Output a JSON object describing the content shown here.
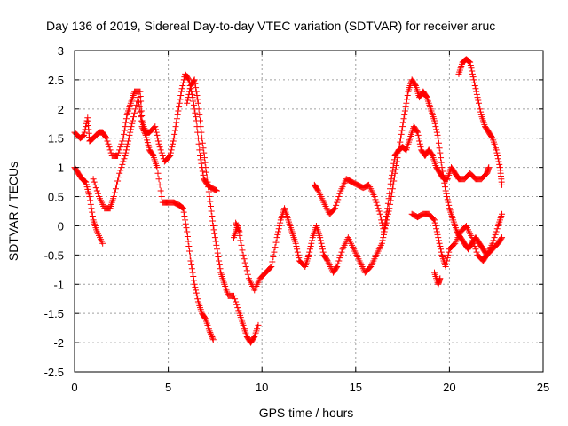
{
  "chart_data": {
    "type": "scatter",
    "title": "Day 136 of 2019, Sidereal Day-to-day VTEC variation (SDTVAR) for receiver aruc",
    "xlabel": "GPS time / hours",
    "ylabel": "SDTVAR / TECUs",
    "xlim": [
      0,
      25
    ],
    "ylim": [
      -2.5,
      3
    ],
    "xticks": [
      "0",
      "5",
      "10",
      "15",
      "20",
      "25"
    ],
    "xtick_values": [
      0,
      5,
      10,
      15,
      20,
      25
    ],
    "yticks": [
      "3",
      "2.5",
      "2",
      "1.5",
      "1",
      "0.5",
      "0",
      "-0.5",
      "-1",
      "-1.5",
      "-2",
      "-2.5"
    ],
    "ytick_values": [
      3,
      2.5,
      2,
      1.5,
      1,
      0.5,
      0,
      -0.5,
      -1,
      -1.5,
      -2,
      -2.5
    ],
    "grid": true,
    "marker": "plus",
    "color": "#ff0000",
    "series": [
      {
        "values": [
          [
            0.0,
            1.6
          ],
          [
            0.3,
            1.5
          ],
          [
            0.5,
            1.55
          ],
          [
            0.7,
            1.85
          ],
          [
            0.8,
            1.45
          ],
          [
            1.0,
            1.5
          ],
          [
            1.3,
            1.6
          ],
          [
            1.5,
            1.6
          ],
          [
            1.7,
            1.5
          ],
          [
            2.0,
            1.2
          ],
          [
            2.3,
            1.2
          ],
          [
            2.6,
            1.5
          ],
          [
            2.8,
            1.9
          ],
          [
            3.0,
            2.1
          ],
          [
            3.2,
            2.3
          ],
          [
            3.5,
            2.3
          ],
          [
            3.6,
            1.8
          ],
          [
            3.8,
            1.6
          ],
          [
            4.0,
            1.6
          ],
          [
            4.3,
            1.7
          ],
          [
            4.5,
            1.4
          ],
          [
            4.8,
            1.1
          ],
          [
            5.1,
            1.2
          ],
          [
            5.3,
            1.5
          ],
          [
            5.5,
            1.9
          ],
          [
            5.7,
            2.3
          ],
          [
            5.9,
            2.6
          ],
          [
            6.1,
            2.5
          ],
          [
            6.3,
            2.2
          ],
          [
            6.5,
            1.8
          ],
          [
            6.7,
            1.2
          ],
          [
            6.9,
            0.8
          ],
          [
            7.1,
            0.7
          ],
          [
            7.3,
            0.65
          ],
          [
            7.6,
            0.6
          ]
        ]
      },
      {
        "values": [
          [
            0.0,
            1.0
          ],
          [
            0.2,
            0.9
          ],
          [
            0.4,
            0.8
          ],
          [
            0.6,
            0.75
          ],
          [
            0.8,
            0.5
          ],
          [
            1.0,
            0.1
          ],
          [
            1.2,
            -0.1
          ],
          [
            1.5,
            -0.3
          ]
        ]
      },
      {
        "values": [
          [
            1.0,
            0.8
          ],
          [
            1.3,
            0.5
          ],
          [
            1.6,
            0.3
          ],
          [
            1.9,
            0.3
          ],
          [
            2.1,
            0.5
          ],
          [
            2.4,
            0.9
          ],
          [
            2.7,
            1.2
          ],
          [
            2.9,
            1.5
          ],
          [
            3.1,
            1.8
          ],
          [
            3.4,
            2.2
          ],
          [
            3.6,
            1.7
          ],
          [
            3.8,
            1.55
          ],
          [
            4.0,
            1.3
          ],
          [
            4.2,
            1.2
          ],
          [
            4.4,
            1.0
          ],
          [
            4.7,
            0.4
          ],
          [
            5.0,
            0.4
          ],
          [
            5.3,
            0.4
          ],
          [
            5.6,
            0.35
          ],
          [
            5.8,
            0.3
          ],
          [
            6.0,
            -0.1
          ],
          [
            6.2,
            -0.6
          ],
          [
            6.4,
            -1.0
          ],
          [
            6.6,
            -1.3
          ],
          [
            6.8,
            -1.5
          ],
          [
            7.0,
            -1.6
          ],
          [
            7.2,
            -1.8
          ],
          [
            7.4,
            -1.95
          ]
        ]
      },
      {
        "values": [
          [
            6.0,
            2.1
          ],
          [
            6.2,
            2.4
          ],
          [
            6.4,
            2.5
          ],
          [
            6.6,
            2.1
          ],
          [
            6.8,
            1.5
          ],
          [
            7.0,
            1.0
          ],
          [
            7.2,
            0.5
          ],
          [
            7.4,
            0.0
          ],
          [
            7.6,
            -0.4
          ],
          [
            7.8,
            -0.8
          ],
          [
            8.0,
            -1.0
          ],
          [
            8.2,
            -1.2
          ],
          [
            8.5,
            -1.2
          ],
          [
            8.8,
            -1.5
          ],
          [
            9.0,
            -1.7
          ],
          [
            9.2,
            -1.9
          ],
          [
            9.4,
            -2.0
          ],
          [
            9.6,
            -1.9
          ],
          [
            9.8,
            -1.7
          ]
        ]
      },
      {
        "values": [
          [
            8.5,
            -0.2
          ],
          [
            8.7,
            0.0
          ],
          [
            9.0,
            -0.5
          ],
          [
            9.3,
            -0.9
          ],
          [
            9.6,
            -1.1
          ],
          [
            9.9,
            -0.9
          ],
          [
            10.2,
            -0.8
          ],
          [
            10.5,
            -0.7
          ],
          [
            10.8,
            -0.2
          ],
          [
            11.0,
            0.1
          ],
          [
            11.2,
            0.3
          ],
          [
            11.4,
            0.1
          ],
          [
            11.6,
            -0.1
          ],
          [
            11.8,
            -0.3
          ],
          [
            12.0,
            -0.6
          ],
          [
            12.3,
            -0.7
          ],
          [
            12.5,
            -0.5
          ],
          [
            12.7,
            -0.2
          ],
          [
            12.9,
            0.0
          ],
          [
            13.1,
            -0.2
          ],
          [
            13.3,
            -0.5
          ],
          [
            13.5,
            -0.6
          ],
          [
            13.8,
            -0.8
          ],
          [
            14.0,
            -0.7
          ],
          [
            14.3,
            -0.4
          ],
          [
            14.6,
            -0.2
          ],
          [
            14.9,
            -0.4
          ],
          [
            15.2,
            -0.6
          ],
          [
            15.5,
            -0.8
          ],
          [
            15.8,
            -0.7
          ],
          [
            16.1,
            -0.5
          ],
          [
            16.4,
            -0.3
          ],
          [
            16.6,
            0.0
          ],
          [
            16.8,
            0.3
          ],
          [
            17.0,
            0.7
          ],
          [
            17.2,
            1.1
          ],
          [
            17.4,
            1.5
          ],
          [
            17.6,
            1.9
          ],
          [
            17.8,
            2.3
          ],
          [
            18.0,
            2.5
          ],
          [
            18.2,
            2.4
          ],
          [
            18.4,
            2.2
          ],
          [
            18.6,
            2.3
          ],
          [
            18.8,
            2.2
          ],
          [
            19.0,
            2.0
          ],
          [
            19.2,
            1.8
          ],
          [
            19.4,
            1.5
          ],
          [
            19.6,
            1.0
          ],
          [
            19.8,
            0.6
          ],
          [
            20.0,
            0.3
          ],
          [
            20.2,
            0.1
          ],
          [
            20.4,
            -0.1
          ],
          [
            20.6,
            -0.2
          ],
          [
            20.8,
            -0.3
          ],
          [
            21.0,
            -0.4
          ],
          [
            21.2,
            -0.3
          ],
          [
            21.4,
            -0.2
          ],
          [
            21.6,
            -0.3
          ],
          [
            21.8,
            -0.4
          ],
          [
            22.0,
            -0.5
          ],
          [
            22.3,
            -0.4
          ],
          [
            22.6,
            -0.3
          ],
          [
            22.8,
            -0.2
          ]
        ]
      },
      {
        "values": [
          [
            12.8,
            0.7
          ],
          [
            13.0,
            0.6
          ],
          [
            13.3,
            0.4
          ],
          [
            13.6,
            0.2
          ],
          [
            13.9,
            0.3
          ],
          [
            14.2,
            0.6
          ],
          [
            14.5,
            0.8
          ],
          [
            14.8,
            0.75
          ],
          [
            15.1,
            0.7
          ],
          [
            15.4,
            0.65
          ],
          [
            15.7,
            0.7
          ],
          [
            16.0,
            0.5
          ],
          [
            16.3,
            0.2
          ],
          [
            16.5,
            -0.1
          ],
          [
            16.7,
            0.3
          ],
          [
            16.9,
            0.8
          ],
          [
            17.1,
            1.2
          ],
          [
            17.3,
            1.3
          ],
          [
            17.5,
            1.35
          ],
          [
            17.7,
            1.3
          ],
          [
            17.9,
            1.5
          ],
          [
            18.1,
            1.7
          ],
          [
            18.3,
            1.6
          ],
          [
            18.5,
            1.3
          ],
          [
            18.7,
            1.2
          ],
          [
            18.9,
            1.3
          ],
          [
            19.1,
            1.2
          ],
          [
            19.3,
            1.0
          ],
          [
            19.5,
            0.9
          ],
          [
            19.7,
            0.8
          ],
          [
            19.9,
            0.8
          ],
          [
            20.1,
            1.0
          ],
          [
            20.3,
            0.9
          ],
          [
            20.5,
            0.8
          ],
          [
            20.8,
            0.8
          ],
          [
            21.1,
            0.9
          ],
          [
            21.4,
            0.8
          ],
          [
            21.7,
            0.8
          ],
          [
            22.0,
            0.9
          ],
          [
            22.1,
            1.0
          ]
        ]
      },
      {
        "values": [
          [
            20.5,
            2.6
          ],
          [
            20.7,
            2.8
          ],
          [
            20.9,
            2.85
          ],
          [
            21.1,
            2.8
          ],
          [
            21.3,
            2.5
          ],
          [
            21.5,
            2.2
          ],
          [
            21.7,
            1.9
          ],
          [
            21.9,
            1.7
          ],
          [
            22.1,
            1.6
          ],
          [
            22.3,
            1.5
          ],
          [
            22.5,
            1.3
          ],
          [
            22.7,
            1.0
          ],
          [
            22.8,
            0.7
          ]
        ]
      },
      {
        "values": [
          [
            18.0,
            0.2
          ],
          [
            18.3,
            0.15
          ],
          [
            18.6,
            0.2
          ],
          [
            18.9,
            0.2
          ],
          [
            19.2,
            0.1
          ],
          [
            19.4,
            -0.2
          ],
          [
            19.6,
            -0.5
          ],
          [
            19.8,
            -0.7
          ],
          [
            20.0,
            -0.4
          ],
          [
            20.3,
            -0.3
          ],
          [
            20.6,
            -0.1
          ],
          [
            20.9,
            0.0
          ],
          [
            21.2,
            -0.2
          ],
          [
            21.5,
            -0.5
          ],
          [
            21.8,
            -0.6
          ],
          [
            22.0,
            -0.5
          ],
          [
            22.3,
            -0.3
          ],
          [
            22.6,
            0.0
          ],
          [
            22.8,
            0.2
          ]
        ]
      },
      {
        "values": [
          [
            19.2,
            -0.8
          ],
          [
            19.4,
            -1.0
          ],
          [
            19.5,
            -0.9
          ]
        ]
      },
      {
        "values": [
          [
            8.6,
            0.05
          ],
          [
            8.8,
            -0.1
          ]
        ]
      }
    ]
  }
}
